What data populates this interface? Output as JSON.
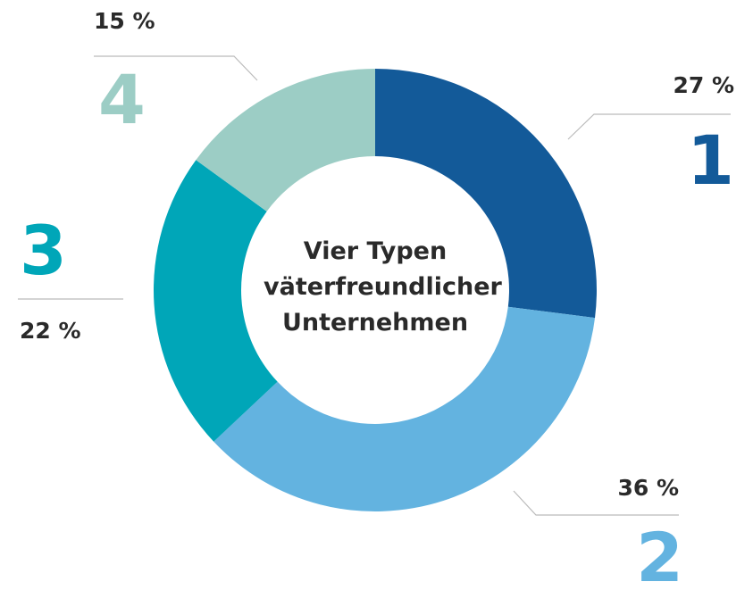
{
  "chart_data": {
    "type": "donut",
    "title": "Vier Typen väterfreundlicher Unternehmen",
    "categories": [
      "1",
      "2",
      "3",
      "4"
    ],
    "values": [
      27,
      36,
      22,
      15
    ],
    "value_labels": [
      "27 %",
      "36 %",
      "22 %",
      "15 %"
    ],
    "colors": [
      "#135a99",
      "#63b3e0",
      "#00a6b8",
      "#9ccdc5"
    ]
  }
}
